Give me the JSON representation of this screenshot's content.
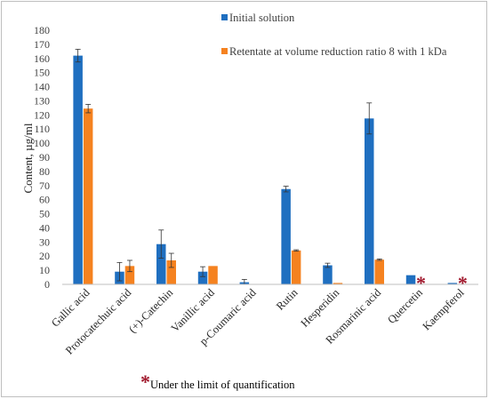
{
  "chart_data": {
    "type": "bar",
    "ylabel": "Content, µg/ml",
    "ylim": [
      0,
      180
    ],
    "ytick_step": 10,
    "grid": false,
    "legend_placement": "top-right",
    "categories": [
      "Gallic acid",
      "Protocatechuic acid",
      "(+)-Catechin",
      "Vanillic acid",
      "p-Coumaric acid",
      "Rutin",
      "Hesperidin",
      "Rosmarinic acid",
      "Quercetin",
      "Kaempferol"
    ],
    "series": [
      {
        "name": "Initial solution",
        "color": "#1f6fc0",
        "values": [
          162,
          9,
          28.5,
          9,
          1.5,
          67.5,
          13.5,
          117.5,
          6.5,
          1
        ],
        "errors": [
          4.5,
          6.5,
          10,
          3.5,
          2,
          2,
          1.5,
          11,
          0,
          0
        ]
      },
      {
        "name": "Retentate at volume reduction ratio 8 with 1 kDa",
        "color": "#f58220",
        "values": [
          124.5,
          13,
          17,
          13,
          null,
          24,
          1,
          17.5,
          null,
          null
        ],
        "errors": [
          3,
          4,
          5,
          0,
          0,
          0.5,
          0,
          0.5,
          0,
          0
        ],
        "below_loq": [
          false,
          false,
          false,
          false,
          false,
          false,
          false,
          false,
          true,
          true
        ]
      }
    ],
    "annotations": {
      "star_symbol": "*",
      "note": "Under the limit of quantification"
    }
  }
}
